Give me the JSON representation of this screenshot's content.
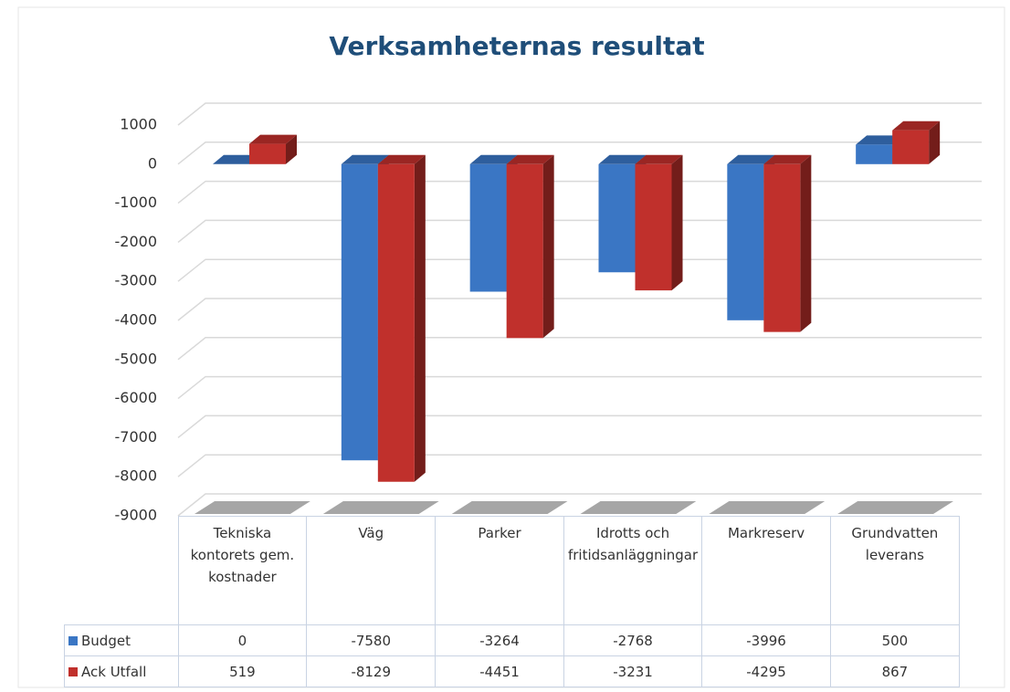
{
  "chart_data": {
    "type": "bar3d",
    "title": "Verksamheternas  resultat",
    "categories": [
      "Tekniska kontorets gem. kostnader",
      "Väg",
      "Parker",
      "Idrotts och fritidsanläggningar",
      "Markreserv",
      "Grundvatten leverans"
    ],
    "series": [
      {
        "name": "Budget",
        "color": "#3a76c4",
        "values": [
          0,
          -7580,
          -3264,
          -2768,
          -3996,
          500
        ]
      },
      {
        "name": "Ack Utfall",
        "color": "#c0302c",
        "values": [
          519,
          -8129,
          -4451,
          -3231,
          -4295,
          867
        ]
      }
    ],
    "ylim": [
      -9000,
      1000
    ],
    "yticks": [
      1000,
      0,
      -1000,
      -2000,
      -3000,
      -4000,
      -5000,
      -6000,
      -7000,
      -8000,
      -9000
    ],
    "grid": true
  }
}
